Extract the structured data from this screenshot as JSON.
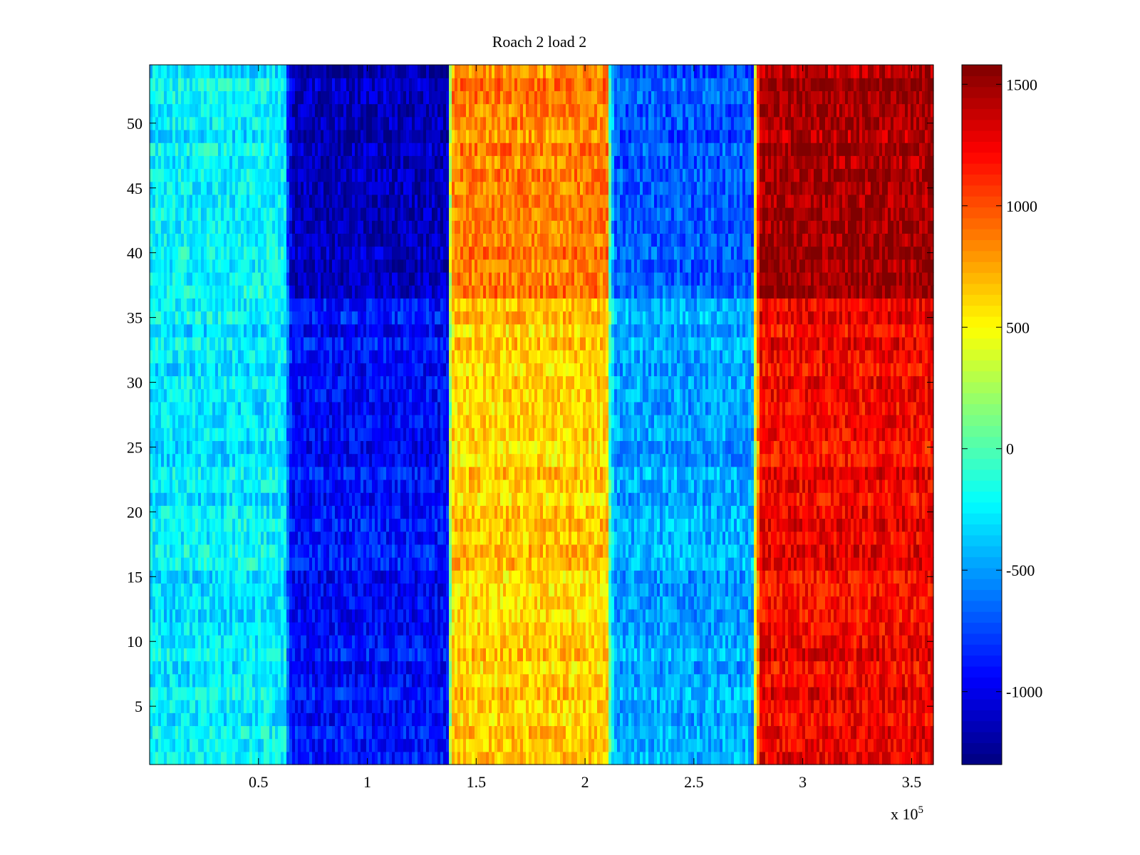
{
  "chart_data": {
    "type": "heatmap",
    "title": "Roach 2 load 2",
    "xlabel": "",
    "ylabel": "",
    "x_multiplier_label": "x 10",
    "x_multiplier_exponent": "5",
    "xlim": [
      0,
      3.6
    ],
    "ylim": [
      0.5,
      54.5
    ],
    "x_ticks": [
      0.5,
      1,
      1.5,
      2,
      2.5,
      3,
      3.5
    ],
    "x_tick_labels": [
      "0.5",
      "1",
      "1.5",
      "2",
      "2.5",
      "3",
      "3.5"
    ],
    "y_ticks": [
      5,
      10,
      15,
      20,
      25,
      30,
      35,
      40,
      45,
      50
    ],
    "y_tick_labels": [
      "5",
      "10",
      "15",
      "20",
      "25",
      "30",
      "35",
      "40",
      "45",
      "50"
    ],
    "n_rows": 54,
    "colormap": "jet",
    "clim": [
      -1300,
      1580
    ],
    "colorbar_ticks": [
      -1000,
      -500,
      0,
      500,
      1000,
      1500
    ],
    "colorbar_tick_labels": [
      "-1000",
      "-500",
      "0",
      "500",
      "1000",
      "1500"
    ],
    "regions": [
      {
        "x_start": 0.0,
        "x_end": 0.63,
        "rows_1_36": -250,
        "rows_37_54": -250
      },
      {
        "x_start": 0.63,
        "x_end": 1.37,
        "rows_1_36": -900,
        "rows_37_54": -1150
      },
      {
        "x_start": 1.37,
        "x_end": 2.11,
        "rows_1_36": 650,
        "rows_37_54": 850
      },
      {
        "x_start": 2.11,
        "x_end": 2.78,
        "rows_1_36": -450,
        "rows_37_54": -700
      },
      {
        "x_start": 2.78,
        "x_end": 3.6,
        "rows_1_36": 1250,
        "rows_37_54": 1480
      }
    ]
  }
}
